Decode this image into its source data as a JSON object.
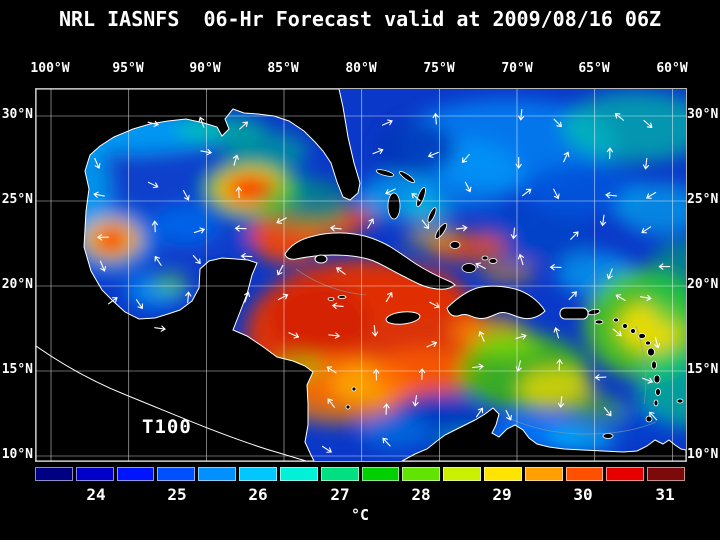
{
  "title": "NRL IASNFS  06-Hr Forecast valid at 2009/08/16 06Z",
  "map": {
    "field_label": "T100",
    "lon_ticks": [
      "100°W",
      "95°W",
      "90°W",
      "85°W",
      "80°W",
      "75°W",
      "70°W",
      "65°W",
      "60°W"
    ],
    "lat_ticks_left": [
      "30°N",
      "25°N",
      "20°N",
      "15°N",
      "10°N"
    ],
    "lat_ticks_right": [
      "30°N",
      "25°N",
      "20°N",
      "15°N",
      "10°N"
    ]
  },
  "colorbar": {
    "unit": "°C",
    "tick_labels": [
      "24",
      "25",
      "26",
      "27",
      "28",
      "29",
      "30",
      "31"
    ],
    "segment_colors": [
      "#000082",
      "#0000c8",
      "#0014ff",
      "#0050ff",
      "#0090ff",
      "#00c8ff",
      "#00f0d8",
      "#00e080",
      "#00d000",
      "#60e400",
      "#c8f000",
      "#ffe400",
      "#ffa000",
      "#ff5000",
      "#e60000",
      "#7c0a0a"
    ]
  },
  "colors": {
    "background": "#000000",
    "coastline": "#ffffff",
    "grid": "#ffffff",
    "text": "#ffffff"
  }
}
